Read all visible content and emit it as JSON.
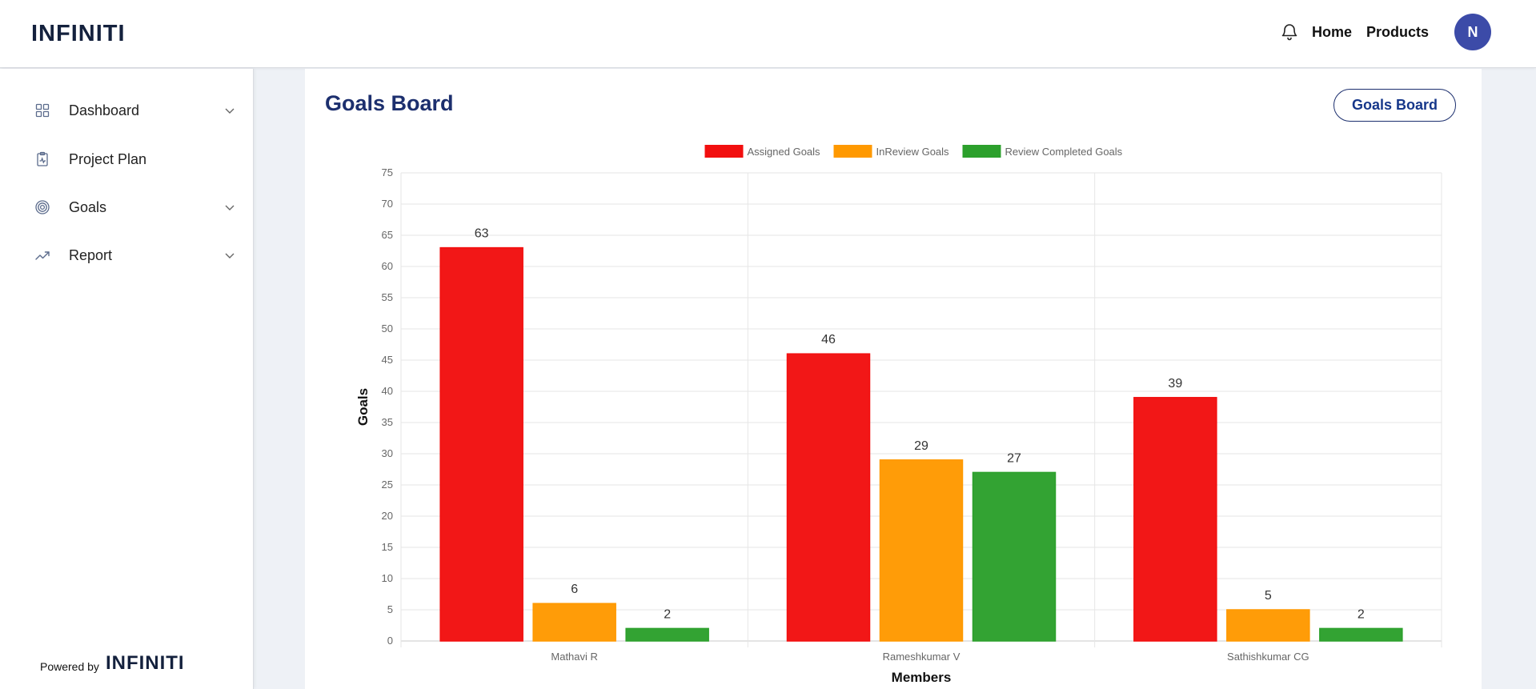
{
  "header": {
    "logo": "INFINITI",
    "nav": [
      "Home",
      "Products"
    ],
    "avatar_initial": "N",
    "icons": {
      "notifications": "bell-icon"
    }
  },
  "sidebar": {
    "items": [
      {
        "label": "Dashboard",
        "icon": "grid-icon",
        "has_submenu": true
      },
      {
        "label": "Project Plan",
        "icon": "clipboard-icon",
        "has_submenu": false
      },
      {
        "label": "Goals",
        "icon": "target-icon",
        "has_submenu": true
      },
      {
        "label": "Report",
        "icon": "trending-up-icon",
        "has_submenu": true
      }
    ],
    "powered_by": "Powered by",
    "powered_logo": "INFINITI"
  },
  "main": {
    "title": "Goals Board",
    "button_label": "Goals Board"
  },
  "colors": {
    "brand": "#1c2f6e",
    "avatar": "#3c4ba8",
    "assigned": "#f20f0f",
    "inreview": "#ff9900",
    "completed": "#2ca02c"
  },
  "chart_data": {
    "type": "bar",
    "categories": [
      "Mathavi R",
      "Rameshkumar V",
      "Sathishkumar CG"
    ],
    "series": [
      {
        "name": "Assigned Goals",
        "values": [
          63,
          46,
          39
        ],
        "color": "#f20f0f"
      },
      {
        "name": "InReview Goals",
        "values": [
          6,
          29,
          5
        ],
        "color": "#ff9900"
      },
      {
        "name": "Review Completed Goals",
        "values": [
          2,
          27,
          2
        ],
        "color": "#2ca02c"
      }
    ],
    "xlabel": "Members",
    "ylabel": "Goals",
    "ylim": [
      0,
      75
    ],
    "yticks": [
      0,
      5,
      10,
      15,
      20,
      25,
      30,
      35,
      40,
      45,
      50,
      55,
      60,
      65,
      70,
      75
    ],
    "legend": "top-center",
    "grid": true,
    "data_labels": true
  }
}
